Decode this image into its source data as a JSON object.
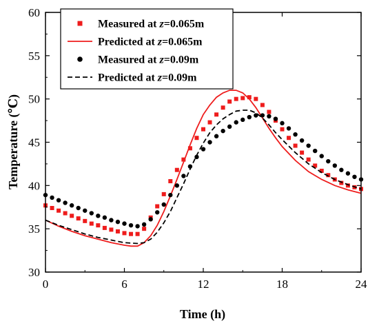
{
  "chart_data": {
    "type": "line",
    "xlabel": "Time (h)",
    "ylabel": "Temperature (℃)",
    "xlim": [
      0,
      24
    ],
    "ylim": [
      30,
      60
    ],
    "xticks": [
      0,
      6,
      12,
      18,
      24
    ],
    "yticks": [
      30,
      35,
      40,
      45,
      50,
      55,
      60
    ],
    "grid": false,
    "legend_position": "top-left",
    "series": [
      {
        "name": "Measured at z=0.065m",
        "label_prefix": "Measured at ",
        "label_var": "z",
        "label_suffix": "=0.065m",
        "kind": "scatter",
        "marker": "square",
        "color": "#ee1c1c",
        "x": [
          0,
          0.5,
          1,
          1.5,
          2,
          2.5,
          3,
          3.5,
          4,
          4.5,
          5,
          5.5,
          6,
          6.5,
          7,
          7.5,
          8,
          8.5,
          9,
          9.5,
          10,
          10.5,
          11,
          11.5,
          12,
          12.5,
          13,
          13.5,
          14,
          14.5,
          15,
          15.5,
          16,
          16.5,
          17,
          17.5,
          18,
          18.5,
          19,
          19.5,
          20,
          20.5,
          21,
          21.5,
          22,
          22.5,
          23,
          23.5,
          24
        ],
        "y": [
          37.7,
          37.4,
          37.1,
          36.8,
          36.5,
          36.2,
          35.9,
          35.6,
          35.4,
          35.1,
          34.9,
          34.7,
          34.5,
          34.4,
          34.4,
          35.0,
          36.3,
          37.6,
          39.0,
          40.5,
          41.8,
          43.0,
          44.3,
          45.5,
          46.5,
          47.3,
          48.2,
          49.0,
          49.7,
          50.0,
          50.1,
          50.2,
          50.0,
          49.3,
          48.5,
          47.5,
          46.5,
          45.5,
          44.6,
          43.8,
          43.0,
          42.3,
          41.7,
          41.2,
          40.7,
          40.3,
          40.0,
          39.8,
          39.6
        ]
      },
      {
        "name": "Predicted at z=0.065m",
        "label_prefix": "Predicted at ",
        "label_var": "z",
        "label_suffix": "=0.065m",
        "kind": "line",
        "dash": "solid",
        "color": "#ee1c1c",
        "x": [
          0,
          1,
          2,
          3,
          4,
          5,
          6,
          6.5,
          7,
          7.5,
          8,
          8.5,
          9,
          9.5,
          10,
          10.5,
          11,
          11.5,
          12,
          12.5,
          13,
          13.5,
          14,
          14.5,
          15,
          15.5,
          16,
          16.5,
          17,
          17.5,
          18,
          19,
          20,
          21,
          22,
          23,
          24
        ],
        "y": [
          36.0,
          35.3,
          34.7,
          34.2,
          33.8,
          33.4,
          33.1,
          33.0,
          33.0,
          33.4,
          34.2,
          35.4,
          37.0,
          38.8,
          40.7,
          42.7,
          44.7,
          46.6,
          48.2,
          49.3,
          50.2,
          50.7,
          51.0,
          51.0,
          50.7,
          50.0,
          49.0,
          47.8,
          46.6,
          45.5,
          44.5,
          42.9,
          41.6,
          40.7,
          40.0,
          39.5,
          39.1
        ]
      },
      {
        "name": "Measured at z=0.09m",
        "label_prefix": "Measured at ",
        "label_var": "z",
        "label_suffix": "=0.09m",
        "kind": "scatter",
        "marker": "circle",
        "color": "#000000",
        "x": [
          0,
          0.5,
          1,
          1.5,
          2,
          2.5,
          3,
          3.5,
          4,
          4.5,
          5,
          5.5,
          6,
          6.5,
          7,
          7.5,
          8,
          8.5,
          9,
          9.5,
          10,
          10.5,
          11,
          11.5,
          12,
          12.5,
          13,
          13.5,
          14,
          14.5,
          15,
          15.5,
          16,
          16.5,
          17,
          17.5,
          18,
          18.5,
          19,
          19.5,
          20,
          20.5,
          21,
          21.5,
          22,
          22.5,
          23,
          23.5,
          24
        ],
        "y": [
          38.9,
          38.6,
          38.3,
          38.0,
          37.7,
          37.4,
          37.1,
          36.8,
          36.5,
          36.3,
          36.0,
          35.8,
          35.6,
          35.4,
          35.3,
          35.5,
          36.1,
          36.9,
          37.8,
          38.9,
          40.0,
          41.1,
          42.2,
          43.3,
          44.2,
          45.0,
          45.7,
          46.3,
          46.8,
          47.3,
          47.6,
          47.9,
          48.1,
          48.1,
          48.0,
          47.7,
          47.2,
          46.6,
          45.9,
          45.2,
          44.6,
          44.0,
          43.4,
          42.8,
          42.3,
          41.8,
          41.4,
          41.0,
          40.7
        ]
      },
      {
        "name": "Predicted at z=0.09m",
        "label_prefix": "Predicted at ",
        "label_var": "z",
        "label_suffix": "=0.09m",
        "kind": "line",
        "dash": "dashed",
        "color": "#000000",
        "x": [
          0,
          1,
          2,
          3,
          4,
          5,
          6,
          7,
          7.5,
          8,
          8.5,
          9,
          9.5,
          10,
          10.5,
          11,
          11.5,
          12,
          12.5,
          13,
          13.5,
          14,
          14.5,
          15,
          15.5,
          16,
          16.5,
          17,
          17.5,
          18,
          19,
          20,
          21,
          22,
          23,
          24
        ],
        "y": [
          36.0,
          35.4,
          34.9,
          34.4,
          34.0,
          33.7,
          33.4,
          33.3,
          33.4,
          33.8,
          34.6,
          35.7,
          37.0,
          38.6,
          40.2,
          41.9,
          43.5,
          44.9,
          46.1,
          47.0,
          47.7,
          48.2,
          48.6,
          48.7,
          48.7,
          48.4,
          47.8,
          47.0,
          46.1,
          45.3,
          43.8,
          42.5,
          41.5,
          40.7,
          40.1,
          39.6
        ]
      }
    ]
  }
}
